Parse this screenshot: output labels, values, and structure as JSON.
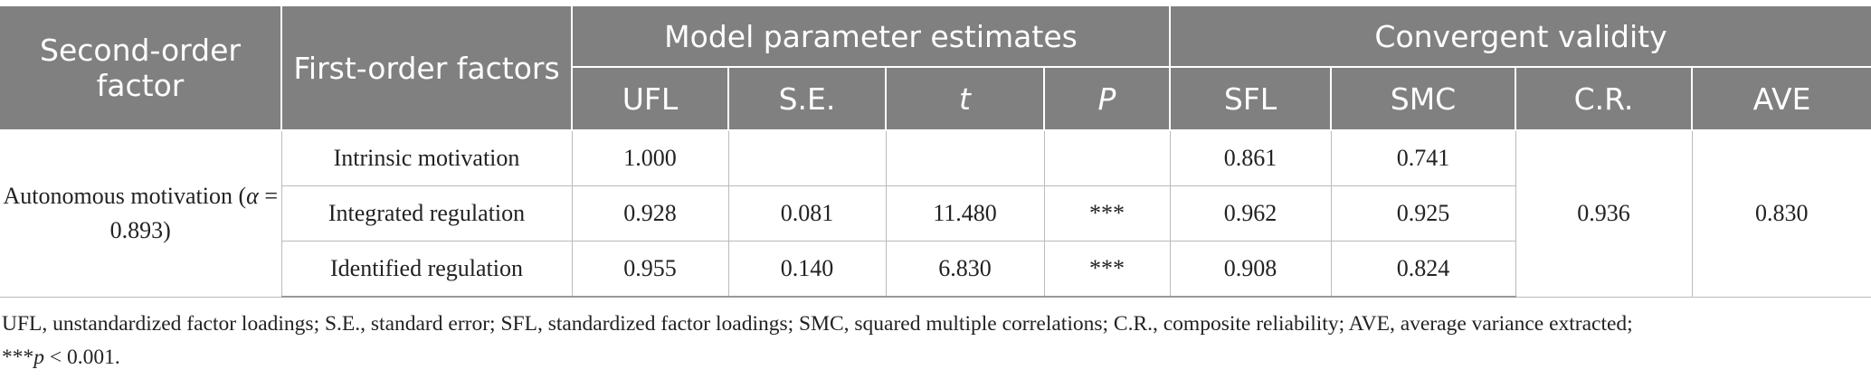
{
  "table": {
    "header": {
      "second_order": "Second-order factor",
      "first_order": "First-order factors",
      "group1": "Model parameter estimates",
      "group2": "Convergent validity",
      "columns": [
        "UFL",
        "S.E.",
        "t",
        "P",
        "SFL",
        "SMC",
        "C.R.",
        "AVE"
      ]
    },
    "group": {
      "label_prefix": "Autonomous motivation (",
      "label_symbol": "α",
      "label_suffix": " = 0.893)",
      "cr": "0.936",
      "ave": "0.830",
      "rows": [
        {
          "factor": "Intrinsic motivation",
          "ufl": "1.000",
          "sfl": "0.861",
          "smc": "0.741"
        },
        {
          "factor": "Integrated regulation",
          "ufl": "0.928",
          "se": "0.081",
          "t": "11.480",
          "p": "***",
          "sfl": "0.962",
          "smc": "0.925"
        },
        {
          "factor": "Identified regulation",
          "ufl": "0.955",
          "se": "0.140",
          "t": "6.830",
          "p": "***",
          "sfl": "0.908",
          "smc": "0.824"
        }
      ]
    }
  },
  "footnote": {
    "text": "UFL, unstandardized factor loadings; S.E., standard error; SFL, standardized factor loadings; SMC, squared multiple correlations; C.R., composite reliability; AVE, average variance extracted;",
    "stars": "***",
    "p": "p",
    "p_rest": " < 0.001."
  }
}
